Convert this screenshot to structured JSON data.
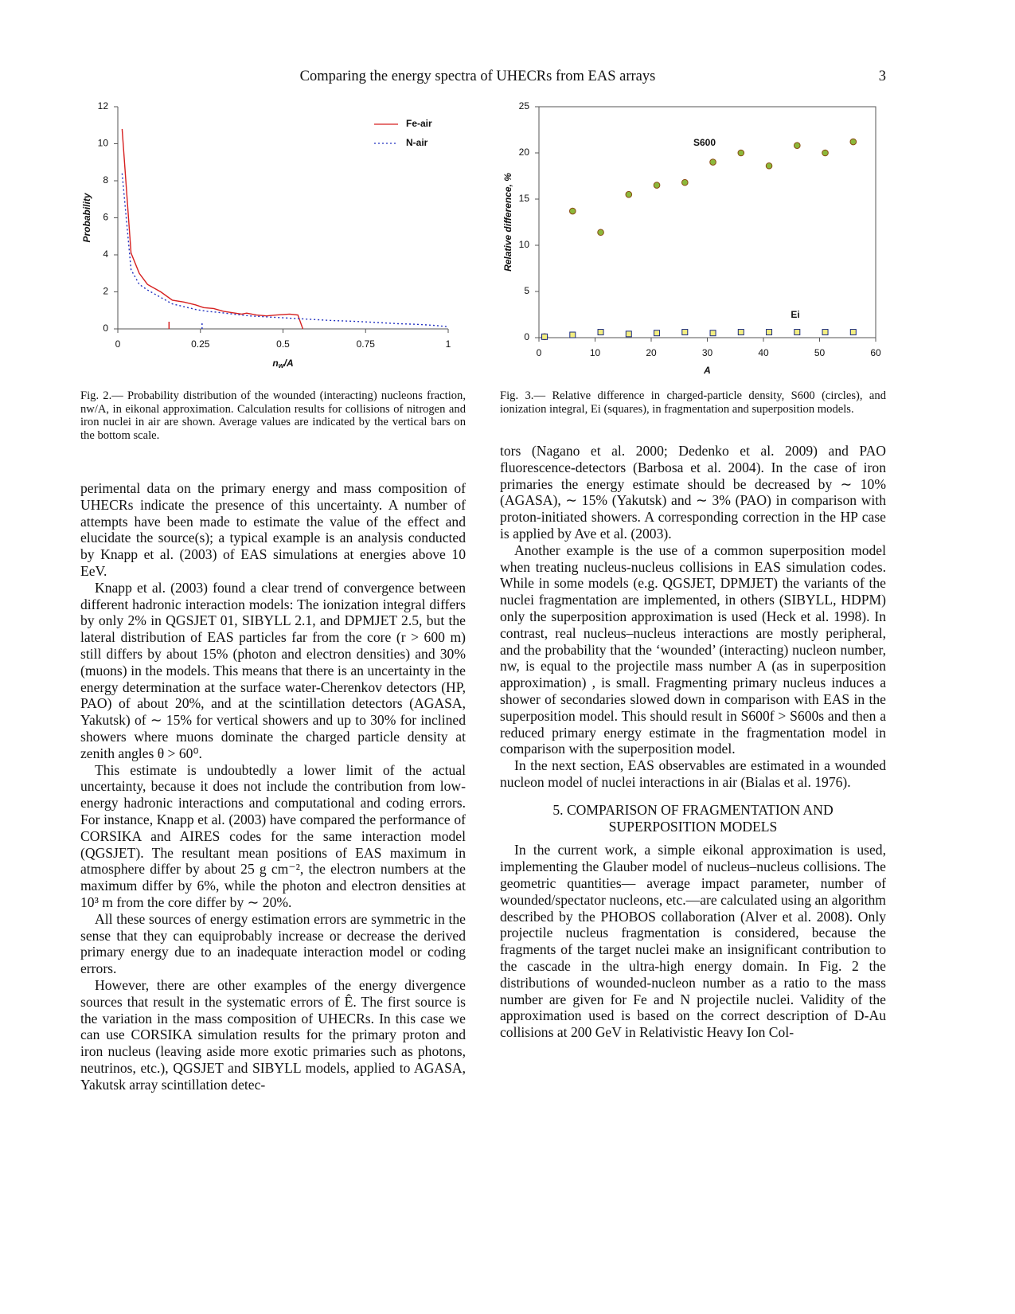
{
  "header": {
    "title": "Comparing the energy spectra of UHECRs from EAS arrays",
    "page_number": "3"
  },
  "chart_data": [
    {
      "type": "line",
      "ylabel": "Probability",
      "xlabel_parts": [
        "n",
        "w",
        "/A"
      ],
      "xlim": [
        0,
        1
      ],
      "xticks": [
        0,
        0.25,
        0.5,
        0.75,
        1
      ],
      "ylim": [
        0,
        12
      ],
      "yticks": [
        0,
        2,
        4,
        6,
        8,
        10,
        12
      ],
      "grid": false,
      "frame": false,
      "legend": "upper right",
      "series": [
        {
          "name": "Fe-air",
          "color": "#d62020",
          "dash": "solid",
          "mean": 0.155,
          "x": [
            0.013,
            0.04,
            0.065,
            0.09,
            0.13,
            0.165,
            0.2,
            0.235,
            0.26,
            0.29,
            0.32,
            0.355,
            0.375,
            0.39,
            0.42,
            0.45,
            0.48,
            0.52,
            0.545,
            0.56
          ],
          "values": [
            10.8,
            4.1,
            3.0,
            2.4,
            2.0,
            1.55,
            1.45,
            1.3,
            1.15,
            1.1,
            0.95,
            0.85,
            0.8,
            0.85,
            0.75,
            0.7,
            0.75,
            0.8,
            0.75,
            0
          ]
        },
        {
          "name": "N-air",
          "color": "#2030c0",
          "dash": "dotted",
          "mean": 0.255,
          "x": [
            0.013,
            0.04,
            0.065,
            0.09,
            0.13,
            0.165,
            0.2,
            0.235,
            0.27,
            0.3,
            0.35,
            0.4,
            0.45,
            0.5,
            0.55,
            0.6,
            0.65,
            0.7,
            0.75,
            0.8,
            0.85,
            0.9,
            0.95,
            1.0
          ],
          "values": [
            8.4,
            3.2,
            2.4,
            2.1,
            1.7,
            1.35,
            1.2,
            1.05,
            0.95,
            0.9,
            0.8,
            0.7,
            0.65,
            0.6,
            0.55,
            0.5,
            0.45,
            0.42,
            0.38,
            0.33,
            0.28,
            0.25,
            0.2,
            0.12
          ]
        }
      ],
      "caption": "Fig. 2.— Probability distribution of the wounded (interacting) nucleons fraction, nw/A, in eikonal approximation. Calculation results for collisions of nitrogen and iron nuclei in air are shown. Average values are indicated by the vertical bars on the bottom scale."
    },
    {
      "type": "scatter",
      "ylabel": "Relative difference, %",
      "xlabel": "A",
      "xlim": [
        0,
        60
      ],
      "xticks": [
        0,
        10,
        20,
        30,
        40,
        50,
        60
      ],
      "ylim": [
        0,
        25
      ],
      "yticks": [
        0,
        5,
        10,
        15,
        20,
        25
      ],
      "grid": false,
      "frame": true,
      "series": [
        {
          "name": "S600",
          "marker": "circle",
          "color": "#8cb83a",
          "edgecolor": "#8a4a10",
          "x": [
            1,
            6,
            11,
            16,
            21,
            26,
            31,
            36,
            41,
            46,
            51,
            56
          ],
          "values": [
            0.1,
            13.7,
            11.4,
            15.5,
            16.5,
            16.8,
            19,
            20,
            18.6,
            20.8,
            20,
            21.2
          ]
        },
        {
          "name": "Ei",
          "marker": "square",
          "color": "#f3ee80",
          "edgecolor": "#1a2a80",
          "x": [
            1,
            6,
            11,
            16,
            21,
            26,
            31,
            36,
            41,
            46,
            51,
            56
          ],
          "values": [
            0.1,
            0.3,
            0.6,
            0.4,
            0.5,
            0.6,
            0.5,
            0.6,
            0.6,
            0.6,
            0.6,
            0.6
          ]
        }
      ],
      "caption": "Fig. 3.— Relative difference in charged-particle density, S600 (circles), and ionization integral, Ei (squares), in fragmentation and superposition models."
    }
  ],
  "left_column": {
    "paragraphs": [
      "perimental data on the primary energy and mass composition of UHECRs indicate the presence of this uncertainty. A number of attempts have been made to estimate the value of the effect and elucidate the source(s); a typical example is an analysis conducted by Knapp et al. (2003) of EAS simulations at energies above 10 EeV.",
      "Knapp et al. (2003) found a clear trend of convergence between different hadronic interaction models: The ionization integral differs by only 2% in QGSJET 01, SIBYLL 2.1, and DPMJET 2.5, but the lateral distribution of EAS particles far from the core (r > 600 m) still differs by about 15% (photon and electron densities) and 30% (muons) in the models. This means that there is an uncertainty in the energy determination at the surface water-Cherenkov detectors (HP, PAO) of about 20%, and at the scintillation detectors (AGASA, Yakutsk) of ∼ 15% for vertical showers and up to 30% for inclined showers where muons dominate the charged particle density at zenith angles θ > 60⁰.",
      "This estimate is undoubtedly a lower limit of the actual uncertainty, because it does not include the contribution from low-energy hadronic interactions and computational and coding errors. For instance, Knapp et al. (2003) have compared the performance of CORSIKA and AIRES codes for the same interaction model (QGSJET). The resultant mean positions of EAS maximum in atmosphere differ by about 25 g cm⁻², the electron numbers at the maximum differ by 6%, while the photon and electron densities at 10³ m from the core differ by ∼ 20%.",
      "All these sources of energy estimation errors are symmetric in the sense that they can equiprobably increase or decrease the derived primary energy due to an inadequate interaction model or coding errors.",
      "However, there are other examples of the energy divergence sources that result in the systematic errors of Ê. The first source is the variation in the mass composition of UHECRs. In this case we can use CORSIKA simulation results for the primary proton and iron nucleus (leaving aside more exotic primaries such as photons, neutrinos, etc.), QGSJET and SIBYLL models, applied to AGASA, Yakutsk array scintillation detec-"
    ]
  },
  "right_column": {
    "paragraphs_before": [
      "tors (Nagano et al. 2000; Dedenko et al. 2009) and PAO fluorescence-detectors (Barbosa et al. 2004). In the case of iron primaries the energy estimate should be decreased by ∼ 10% (AGASA), ∼ 15% (Yakutsk) and ∼ 3% (PAO) in comparison with proton-initiated showers. A corresponding correction in the HP case is applied by Ave et al. (2003).",
      "Another example is the use of a common superposition model when treating nucleus-nucleus collisions in EAS simulation codes. While in some models (e.g. QGSJET, DPMJET) the variants of the nuclei fragmentation are implemented, in others (SIBYLL, HDPM) only the superposition approximation is used (Heck et al. 1998). In contrast, real nucleus–nucleus interactions are mostly peripheral, and the probability that the ‘wounded’ (interacting) nucleon number, nw, is equal to the projectile mass number A (as in superposition approximation) , is small. Fragmenting primary nucleus induces a shower of secondaries slowed down in comparison with EAS in the superposition model. This should result in S600f > S600s and then a reduced primary energy estimate in the fragmentation model in comparison with the superposition model.",
      "In the next section, EAS observables are estimated in a wounded nucleon model of nuclei interactions in air (Bialas et al. 1976)."
    ],
    "section_heading": "5. COMPARISON OF FRAGMENTATION AND SUPERPOSITION MODELS",
    "paragraphs_after": [
      "In the current work, a simple eikonal approximation is used, implementing the Glauber model of nucleus–nucleus collisions. The geometric quantities— average impact parameter, number of wounded/spectator nucleons, etc.—are calculated using an algorithm described by the PHOBOS collaboration (Alver et al. 2008). Only projectile nucleus fragmentation is considered, because the fragments of the target nuclei make an insignificant contribution to the cascade in the ultra-high energy domain. In Fig. 2 the distributions of wounded-nucleon number as a ratio to the mass number are given for Fe and N projectile nuclei. Validity of the approximation used is based on the correct description of D-Au collisions at 200 GeV in Relativistic Heavy Ion Col-"
    ]
  }
}
